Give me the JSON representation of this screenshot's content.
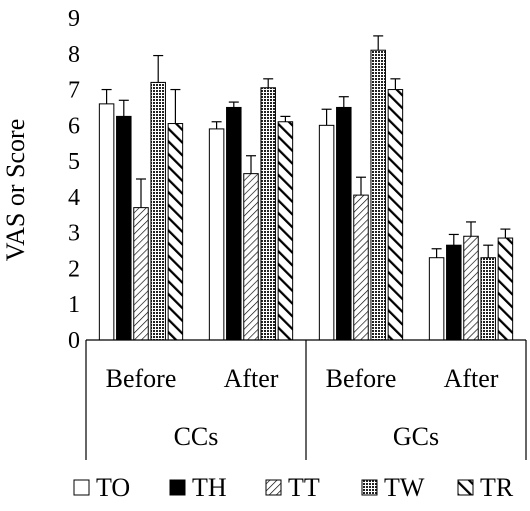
{
  "chart_data": {
    "type": "bar",
    "title": "",
    "xlabel": "",
    "ylabel": "VAS or Score",
    "ylim": [
      0,
      9
    ],
    "yticks": [
      0,
      1,
      2,
      3,
      4,
      5,
      6,
      7,
      8,
      9
    ],
    "grid": false,
    "legend_position": "bottom",
    "groups": [
      {
        "name": "CCs",
        "subcategories": [
          "Before",
          "After"
        ]
      },
      {
        "name": "GCs",
        "subcategories": [
          "Before",
          "After"
        ]
      }
    ],
    "series": [
      {
        "name": "TO",
        "pattern": "open",
        "values": [
          6.6,
          5.9,
          6.0,
          2.3
        ],
        "errors": [
          0.4,
          0.2,
          0.45,
          0.25
        ]
      },
      {
        "name": "TH",
        "pattern": "solid",
        "values": [
          6.25,
          6.5,
          6.5,
          2.65
        ],
        "errors": [
          0.45,
          0.15,
          0.3,
          0.3
        ]
      },
      {
        "name": "TT",
        "pattern": "diag-thin",
        "values": [
          3.7,
          4.65,
          4.05,
          2.9
        ],
        "errors": [
          0.8,
          0.5,
          0.5,
          0.4
        ]
      },
      {
        "name": "TW",
        "pattern": "dots",
        "values": [
          7.2,
          7.05,
          8.1,
          2.3
        ],
        "errors": [
          0.75,
          0.25,
          0.4,
          0.35
        ]
      },
      {
        "name": "TR",
        "pattern": "diag-thick",
        "values": [
          6.05,
          6.1,
          7.0,
          2.85
        ],
        "errors": [
          0.95,
          0.15,
          0.3,
          0.25
        ]
      }
    ]
  }
}
